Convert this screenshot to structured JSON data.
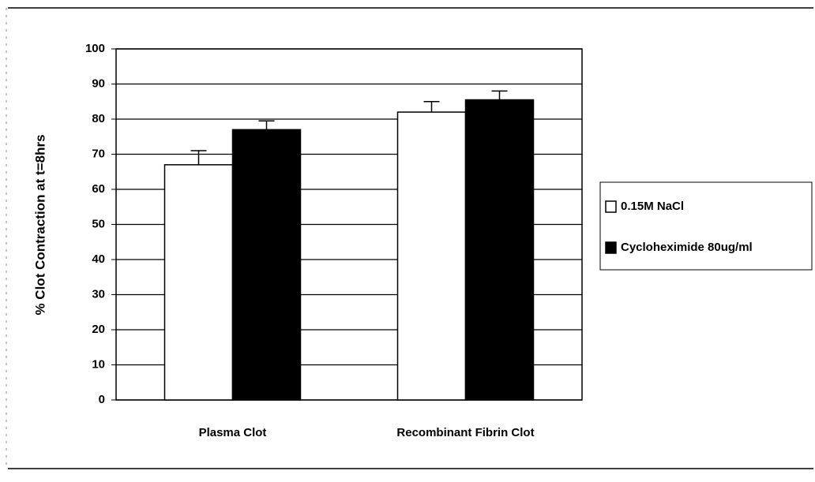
{
  "chart_data": {
    "type": "bar",
    "y_label": "% Clot Contraction at t=8hrs",
    "categories": [
      "Plasma Clot",
      "Recombinant Fibrin Clot"
    ],
    "series": [
      {
        "name": "0.15M NaCl",
        "color": "#ffffff",
        "values": [
          67,
          82
        ],
        "errors": [
          4,
          3
        ]
      },
      {
        "name": "Cycloheximide 80ug/ml",
        "color": "#000000",
        "values": [
          77,
          85.5
        ],
        "errors": [
          2.5,
          2.5
        ]
      }
    ],
    "ylim": [
      0,
      100
    ],
    "yticks": [
      0,
      10,
      20,
      30,
      40,
      50,
      60,
      70,
      80,
      90,
      100
    ],
    "grid": true,
    "legend": "right"
  }
}
